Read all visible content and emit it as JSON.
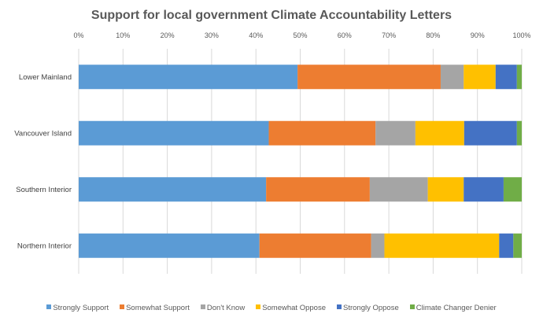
{
  "chart_data": {
    "type": "bar",
    "orientation": "horizontal",
    "stacked": "percent",
    "title": "Support for local government Climate Accountability Letters",
    "xlabel": "",
    "ylabel": "",
    "xlim": [
      0,
      100
    ],
    "x_ticks": [
      "0%",
      "10%",
      "20%",
      "30%",
      "40%",
      "50%",
      "60%",
      "70%",
      "80%",
      "90%",
      "100%"
    ],
    "grid": true,
    "legend_position": "bottom",
    "categories": [
      "Lower Mainland",
      "Vancouver Island",
      "Southern Interior",
      "Northern Interior"
    ],
    "series": [
      {
        "name": "Strongly Support",
        "color": "#5B9BD5",
        "values": [
          49.4,
          42.9,
          42.3,
          40.8
        ]
      },
      {
        "name": "Somewhat Support",
        "color": "#ED7D31",
        "values": [
          32.3,
          24.1,
          23.4,
          25.2
        ]
      },
      {
        "name": "Don't Know",
        "color": "#A5A5A5",
        "values": [
          5.2,
          9.0,
          13.1,
          3.0
        ]
      },
      {
        "name": "Somewhat Oppose",
        "color": "#FFC000",
        "values": [
          7.2,
          11.0,
          8.1,
          25.9
        ]
      },
      {
        "name": "Strongly Oppose",
        "color": "#4472C4",
        "values": [
          4.8,
          11.9,
          9.0,
          3.2
        ]
      },
      {
        "name": "Climate Changer Denier",
        "color": "#70AD47",
        "values": [
          1.1,
          1.1,
          4.1,
          1.9
        ]
      }
    ]
  }
}
